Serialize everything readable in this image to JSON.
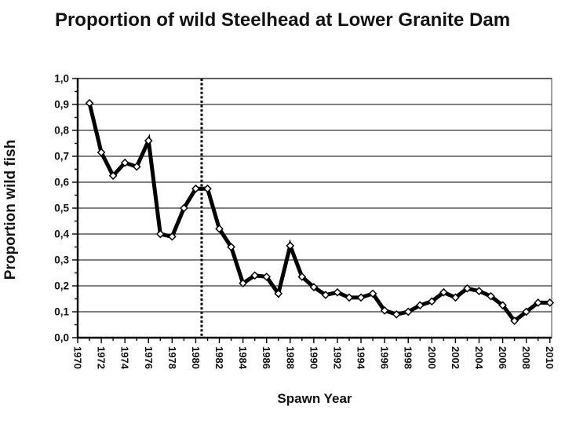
{
  "chart_data": {
    "type": "line",
    "title": "Proportion of wild Steelhead at Lower Granite Dam",
    "xlabel": "Spawn Year",
    "ylabel": "Proportion wild fish",
    "grid": "horizontal-only",
    "legend": "none",
    "decimal_separator": ",",
    "x_axis": {
      "range": [
        1970,
        2010
      ],
      "tick_label_years": [
        1970,
        1972,
        1974,
        1976,
        1978,
        1980,
        1982,
        1984,
        1986,
        1988,
        1990,
        1992,
        1994,
        1996,
        1998,
        2000,
        2002,
        2004,
        2006,
        2008,
        2010
      ],
      "tick_labels": [
        "1970",
        "1972",
        "1974",
        "1976",
        "1978",
        "1980",
        "1982",
        "1984",
        "1986",
        "1988",
        "1990",
        "1992",
        "1994",
        "1996",
        "1998",
        "2000",
        "2002",
        "2004",
        "2006",
        "2008",
        "2010"
      ],
      "minor_tick_every_years": 1,
      "label_rotation_deg": 90
    },
    "y_axis": {
      "range": [
        0,
        1
      ],
      "tick_values": [
        0.0,
        0.1,
        0.2,
        0.3,
        0.4,
        0.5,
        0.6,
        0.7,
        0.8,
        0.9,
        1.0
      ],
      "tick_labels": [
        "0,0",
        "0,1",
        "0,2",
        "0,3",
        "0,4",
        "0,5",
        "0,6",
        "0,7",
        "0,8",
        "0,9",
        "1,0"
      ],
      "minor_tick_step": 0.05
    },
    "series": [
      {
        "name": "proportion-wild-fish",
        "color": "#000000",
        "marker": "open-diamond",
        "x": [
          1971,
          1972,
          1973,
          1974,
          1975,
          1976,
          1977,
          1978,
          1979,
          1980,
          1981,
          1982,
          1983,
          1984,
          1985,
          1986,
          1987,
          1988,
          1989,
          1990,
          1991,
          1992,
          1993,
          1994,
          1995,
          1996,
          1997,
          1998,
          1999,
          2000,
          2001,
          2002,
          2003,
          2004,
          2005,
          2006,
          2007,
          2008,
          2009,
          2010
        ],
        "values": [
          0.905,
          0.715,
          0.625,
          0.675,
          0.66,
          0.76,
          0.4,
          0.39,
          0.5,
          0.575,
          0.575,
          0.42,
          0.35,
          0.21,
          0.24,
          0.235,
          0.17,
          0.355,
          0.235,
          0.195,
          0.165,
          0.175,
          0.155,
          0.155,
          0.17,
          0.105,
          0.09,
          0.1,
          0.125,
          0.14,
          0.175,
          0.155,
          0.19,
          0.18,
          0.16,
          0.125,
          0.065,
          0.1,
          0.135,
          0.135
        ]
      }
    ],
    "annotations": [
      {
        "type": "vline",
        "x": 1980.5,
        "line_style": "dotted",
        "color": "#000000"
      }
    ],
    "colors": {
      "line": "#000000",
      "marker_fill": "#ffffff",
      "gridline": "#000000",
      "plot_border": "#7f7f7f",
      "background": "#ffffff"
    }
  }
}
